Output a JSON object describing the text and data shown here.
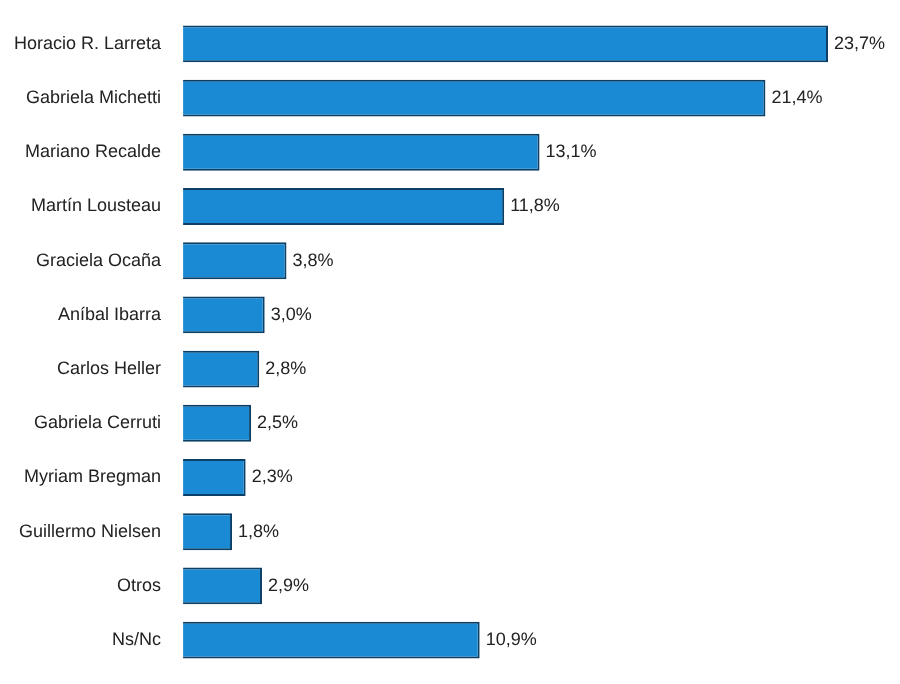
{
  "chart_data": {
    "type": "bar",
    "orientation": "horizontal",
    "categories": [
      "Horacio R. Larreta",
      "Gabriela Michetti",
      "Mariano Recalde",
      "Martín Lousteau",
      "Graciela Ocaña",
      "Aníbal Ibarra",
      "Carlos Heller",
      "Gabriela Cerruti",
      "Myriam Bregman",
      "Guillermo Nielsen",
      "Otros",
      "Ns/Nc"
    ],
    "values": [
      23.7,
      21.4,
      13.1,
      11.8,
      3.8,
      3.0,
      2.8,
      2.5,
      2.3,
      1.8,
      2.9,
      10.9
    ],
    "value_labels": [
      "23,7%",
      "21,4%",
      "13,1%",
      "11,8%",
      "3,8%",
      "3,0%",
      "2,8%",
      "2,5%",
      "2,3%",
      "1,8%",
      "2,9%",
      "10,9%"
    ],
    "color": "#1a8ad4"
  }
}
